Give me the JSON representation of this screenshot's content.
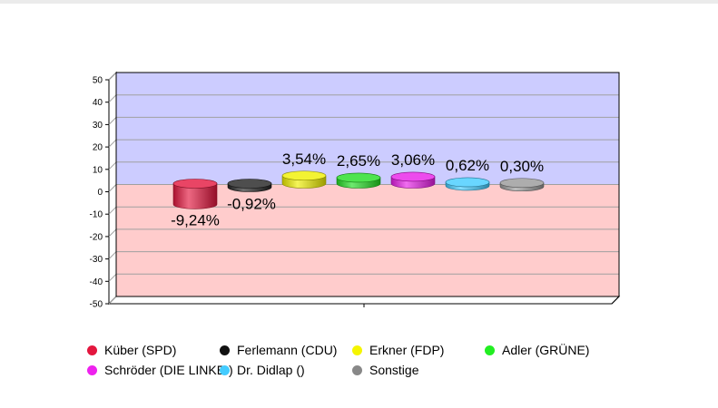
{
  "chart_data": {
    "type": "bar",
    "bar_shape": "cylinder",
    "categories": [
      "Küber (SPD)",
      "Ferlemann (CDU)",
      "Erkner (FDP)",
      "Adler (GRÜNE)",
      "Schröder (DIE LINKE.)",
      "Dr. Didlap ()",
      "Sonstige"
    ],
    "values": [
      -9.24,
      -0.92,
      3.54,
      2.65,
      3.06,
      0.62,
      0.3
    ],
    "labels": [
      "-9,24%",
      "-0,92%",
      "3,54%",
      "2,65%",
      "3,06%",
      "0,62%",
      "0,30%"
    ],
    "colors": [
      "#e3163e",
      "#222222",
      "#f0f000",
      "#22dd22",
      "#e81ee8",
      "#44ccff",
      "#999999"
    ],
    "yticks": [
      50,
      40,
      30,
      20,
      10,
      0,
      -10,
      -20,
      -30,
      -40,
      -50
    ],
    "ylim": [
      -50,
      50
    ],
    "positive_region_color": "#ccccff",
    "negative_region_color": "#ffcccc",
    "grid": true,
    "legend_position": "bottom"
  },
  "legend": {
    "items": [
      {
        "label": "Küber (SPD)",
        "color": "#e3163e"
      },
      {
        "label": "Ferlemann (CDU)",
        "color": "#111111"
      },
      {
        "label": "Erkner (FDP)",
        "color": "#f5f500"
      },
      {
        "label": "Adler (GRÜNE)",
        "color": "#22ee22"
      },
      {
        "label": "Schröder (DIE LINKE.)",
        "color": "#ee22ee"
      },
      {
        "label": "Dr. Didlap ()",
        "color": "#44ccff"
      },
      {
        "label": "Sonstige",
        "color": "#888888"
      }
    ]
  }
}
